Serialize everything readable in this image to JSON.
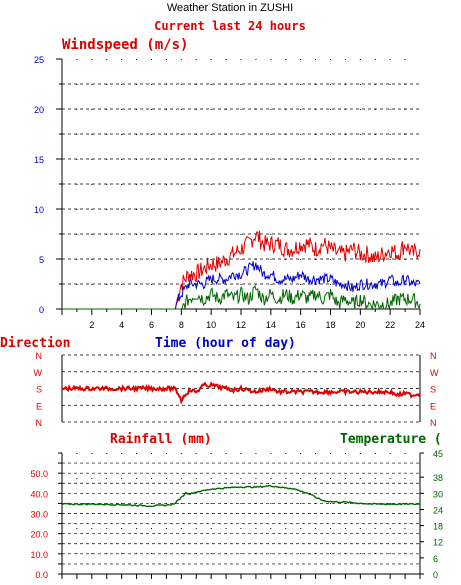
{
  "header": {
    "title": "Weather Station in ZUSHI",
    "subtitle": "Current last 24 hours"
  },
  "colors": {
    "red": "#e00000",
    "blue": "#0000cc",
    "green": "#006600",
    "grid": "#000000"
  },
  "chart_data": [
    {
      "type": "line",
      "title": "Windspeed (m/s)",
      "xlabel": "Time (hour of day)",
      "ylabel": "",
      "xlim": [
        0,
        24
      ],
      "ylim": [
        0,
        25
      ],
      "xticks": [
        2,
        4,
        6,
        8,
        10,
        12,
        14,
        16,
        18,
        20,
        22,
        24
      ],
      "yticks": [
        0,
        5,
        10,
        15,
        20,
        25
      ],
      "grid": true,
      "series": [
        {
          "color": "#e00000",
          "x": [
            0,
            7.6,
            7.8,
            8.0,
            8.5,
            9.0,
            9.5,
            10.0,
            10.5,
            11.0,
            11.5,
            12.0,
            12.5,
            13.0,
            13.5,
            14.0,
            14.5,
            15.0,
            15.5,
            16.0,
            16.5,
            17.0,
            17.5,
            18.0,
            18.5,
            19.0,
            19.5,
            20.0,
            20.5,
            21.0,
            21.5,
            22.0,
            22.5,
            23.0,
            23.5,
            24.0
          ],
          "y": [
            0,
            0,
            1.5,
            2.5,
            3.5,
            3.5,
            4.0,
            4.5,
            4.5,
            5.0,
            5.5,
            6.0,
            6.5,
            7.5,
            6.5,
            6.5,
            6.5,
            6.0,
            6.0,
            6.5,
            6.5,
            6.0,
            6.5,
            6.0,
            5.5,
            5.5,
            6.0,
            5.5,
            5.5,
            5.0,
            5.5,
            6.0,
            5.5,
            6.5,
            5.5,
            6.0
          ]
        },
        {
          "color": "#0000cc",
          "x": [
            0,
            7.6,
            7.8,
            8.0,
            8.5,
            9.0,
            9.5,
            10.0,
            10.5,
            11.0,
            11.5,
            12.0,
            12.5,
            13.0,
            13.5,
            14.0,
            14.5,
            15.0,
            15.5,
            16.0,
            16.5,
            17.0,
            17.5,
            18.0,
            18.5,
            19.0,
            19.5,
            20.0,
            20.5,
            21.0,
            21.5,
            22.0,
            22.5,
            23.0,
            23.5,
            24.0
          ],
          "y": [
            0,
            0,
            1.0,
            1.5,
            2.5,
            2.5,
            2.5,
            3.0,
            3.0,
            3.0,
            3.5,
            3.5,
            4.0,
            4.5,
            3.5,
            3.5,
            3.0,
            3.0,
            3.0,
            3.5,
            3.0,
            3.0,
            3.0,
            3.0,
            2.5,
            2.5,
            2.0,
            2.5,
            2.5,
            2.5,
            2.5,
            3.0,
            2.5,
            3.0,
            2.5,
            2.5
          ]
        },
        {
          "color": "#006600",
          "x": [
            0,
            8.0,
            8.5,
            9.0,
            9.5,
            10.0,
            10.5,
            11.0,
            11.5,
            12.0,
            12.5,
            13.0,
            13.5,
            14.0,
            14.5,
            15.0,
            15.5,
            16.0,
            16.5,
            17.0,
            17.5,
            18.0,
            18.5,
            19.0,
            19.5,
            20.0,
            20.5,
            21.0,
            21.5,
            22.0,
            22.5,
            23.0,
            23.5,
            24.0
          ],
          "y": [
            0,
            0,
            1.0,
            1.5,
            1.0,
            1.5,
            1.0,
            1.5,
            1.0,
            1.5,
            1.0,
            2.0,
            1.0,
            1.5,
            1.0,
            1.5,
            1.0,
            1.5,
            1.0,
            1.5,
            1.0,
            1.5,
            0.5,
            1.0,
            0.5,
            1.0,
            0.5,
            0.5,
            0.5,
            0.5,
            1.0,
            1.0,
            1.0,
            0.5
          ]
        }
      ]
    },
    {
      "type": "line",
      "title": "Direction",
      "xlim": [
        0,
        24
      ],
      "yticks": [
        "N",
        "W",
        "S",
        "E",
        "N"
      ],
      "grid": true,
      "series": [
        {
          "color": "#e00000",
          "x": [
            0,
            7.5,
            7.8,
            8.0,
            8.3,
            8.6,
            9.0,
            9.5,
            10.0,
            10.5,
            11.0,
            11.5,
            12.0,
            12.5,
            13.0,
            13.5,
            14.0,
            14.5,
            15.0,
            15.5,
            16.0,
            17.0,
            18.0,
            18.5,
            19.0,
            20.0,
            21.0,
            22.0,
            22.5,
            23.0,
            23.5,
            24.0
          ],
          "y": [
            2.0,
            2.0,
            2.3,
            2.7,
            2.3,
            2.1,
            2.2,
            1.8,
            1.8,
            1.9,
            2.0,
            2.1,
            2.0,
            2.1,
            2.2,
            2.1,
            2.0,
            2.2,
            2.2,
            2.2,
            2.2,
            2.2,
            2.2,
            2.2,
            2.2,
            2.2,
            2.2,
            2.2,
            2.4,
            2.3,
            2.4,
            2.3
          ]
        }
      ]
    },
    {
      "type": "line",
      "title": "Rainfall (mm)",
      "y2label": "Temperature (",
      "xlim": [
        0,
        24
      ],
      "ylim": [
        0,
        60
      ],
      "yticks": [
        "0.0",
        "10.0",
        "20.0",
        "30.0",
        "40.0",
        "50.0"
      ],
      "y2lim": [
        0,
        45
      ],
      "y2ticks": [
        "0",
        "6",
        "12",
        "18",
        "24",
        "30",
        "38",
        "45"
      ],
      "grid": true,
      "series": [
        {
          "color": "#006600",
          "x": [
            0,
            2,
            4,
            6,
            7,
            7.5,
            8.0,
            8.3,
            8.6,
            9.0,
            9.5,
            10.0,
            11,
            12,
            13,
            14,
            14.5,
            15,
            15.5,
            16,
            16.5,
            17,
            17.5,
            18,
            18.5,
            19,
            20,
            21,
            22,
            23,
            24
          ],
          "y": [
            26.0,
            26.0,
            25.8,
            25.3,
            25.6,
            26.0,
            28.5,
            30.2,
            29.8,
            30.5,
            31.0,
            31.6,
            32.0,
            32.4,
            32.3,
            32.8,
            32.4,
            32.0,
            31.8,
            30.8,
            30.0,
            28.5,
            27.3,
            26.9,
            26.8,
            26.7,
            26.3,
            26.0,
            26.0,
            26.0,
            26.0
          ]
        }
      ]
    }
  ]
}
